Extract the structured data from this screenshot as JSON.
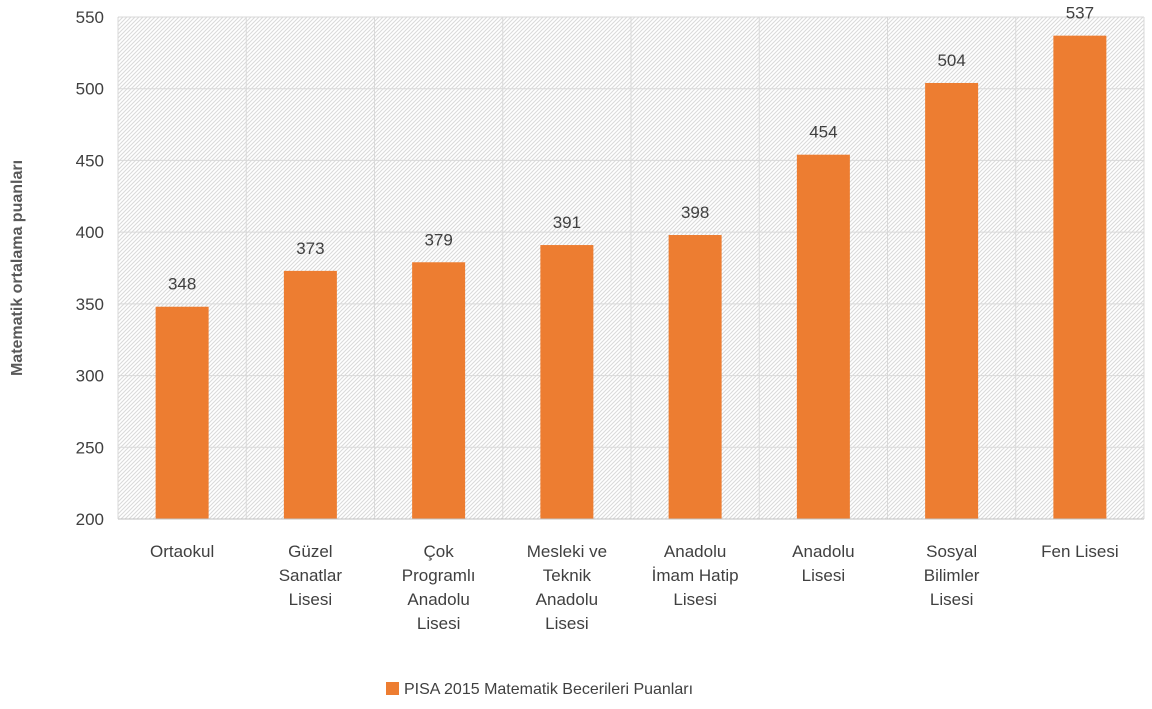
{
  "chart_data": {
    "type": "bar",
    "categories": [
      [
        "Ortaokul"
      ],
      [
        "Güzel",
        "Sanatlar",
        "Lisesi"
      ],
      [
        "Çok",
        "Programlı",
        "Anadolu",
        "Lisesi"
      ],
      [
        "Mesleki ve",
        "Teknik",
        "Anadolu",
        "Lisesi"
      ],
      [
        "Anadolu",
        "İmam Hatip",
        "Lisesi"
      ],
      [
        "Anadolu",
        "Lisesi"
      ],
      [
        "Sosyal",
        "Bilimler",
        "Lisesi"
      ],
      [
        "Fen Lisesi"
      ]
    ],
    "series": [
      {
        "name": "PISA 2015 Matematik Becerileri Puanları",
        "values": [
          348,
          373,
          379,
          391,
          398,
          454,
          504,
          537
        ],
        "color": "#ED7D31"
      }
    ],
    "ylabel": "Matematik ortalama puanları",
    "xlabel": "",
    "ylim": [
      200,
      550
    ],
    "yticks": [
      200,
      250,
      300,
      350,
      400,
      450,
      500,
      550
    ],
    "grid": true,
    "plot_background": "hatched",
    "legend_position": "bottom"
  }
}
